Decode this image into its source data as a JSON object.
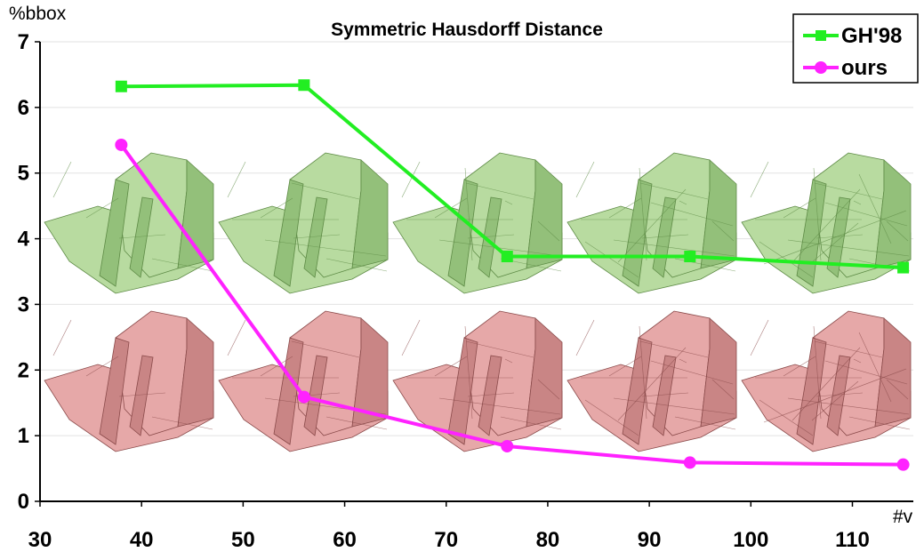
{
  "chart_data": {
    "type": "line",
    "title": "Symmetric Hausdorff Distance",
    "ylabel": "%bbox",
    "xlabel": "#v",
    "xlim": [
      30,
      116
    ],
    "ylim": [
      0,
      7
    ],
    "xticks": [
      30,
      40,
      50,
      60,
      70,
      80,
      90,
      100,
      110
    ],
    "yticks": [
      0,
      1,
      2,
      3,
      4,
      5,
      6,
      7
    ],
    "grid": "horizontal",
    "legend_position": "top-right",
    "series": [
      {
        "name": "GH'98",
        "color": "#22ee22",
        "marker": "square",
        "x": [
          38,
          56,
          76,
          94,
          115
        ],
        "y": [
          6.32,
          6.34,
          3.73,
          3.73,
          3.56
        ]
      },
      {
        "name": "ours",
        "color": "#ff22ff",
        "marker": "circle",
        "x": [
          38,
          56,
          76,
          94,
          115
        ],
        "y": [
          5.43,
          1.59,
          0.84,
          0.59,
          0.56
        ]
      }
    ],
    "mesh_images": {
      "top_row_color": "#b8dba0",
      "bottom_row_color": "#e6a8a8",
      "count_per_row": 5
    }
  }
}
